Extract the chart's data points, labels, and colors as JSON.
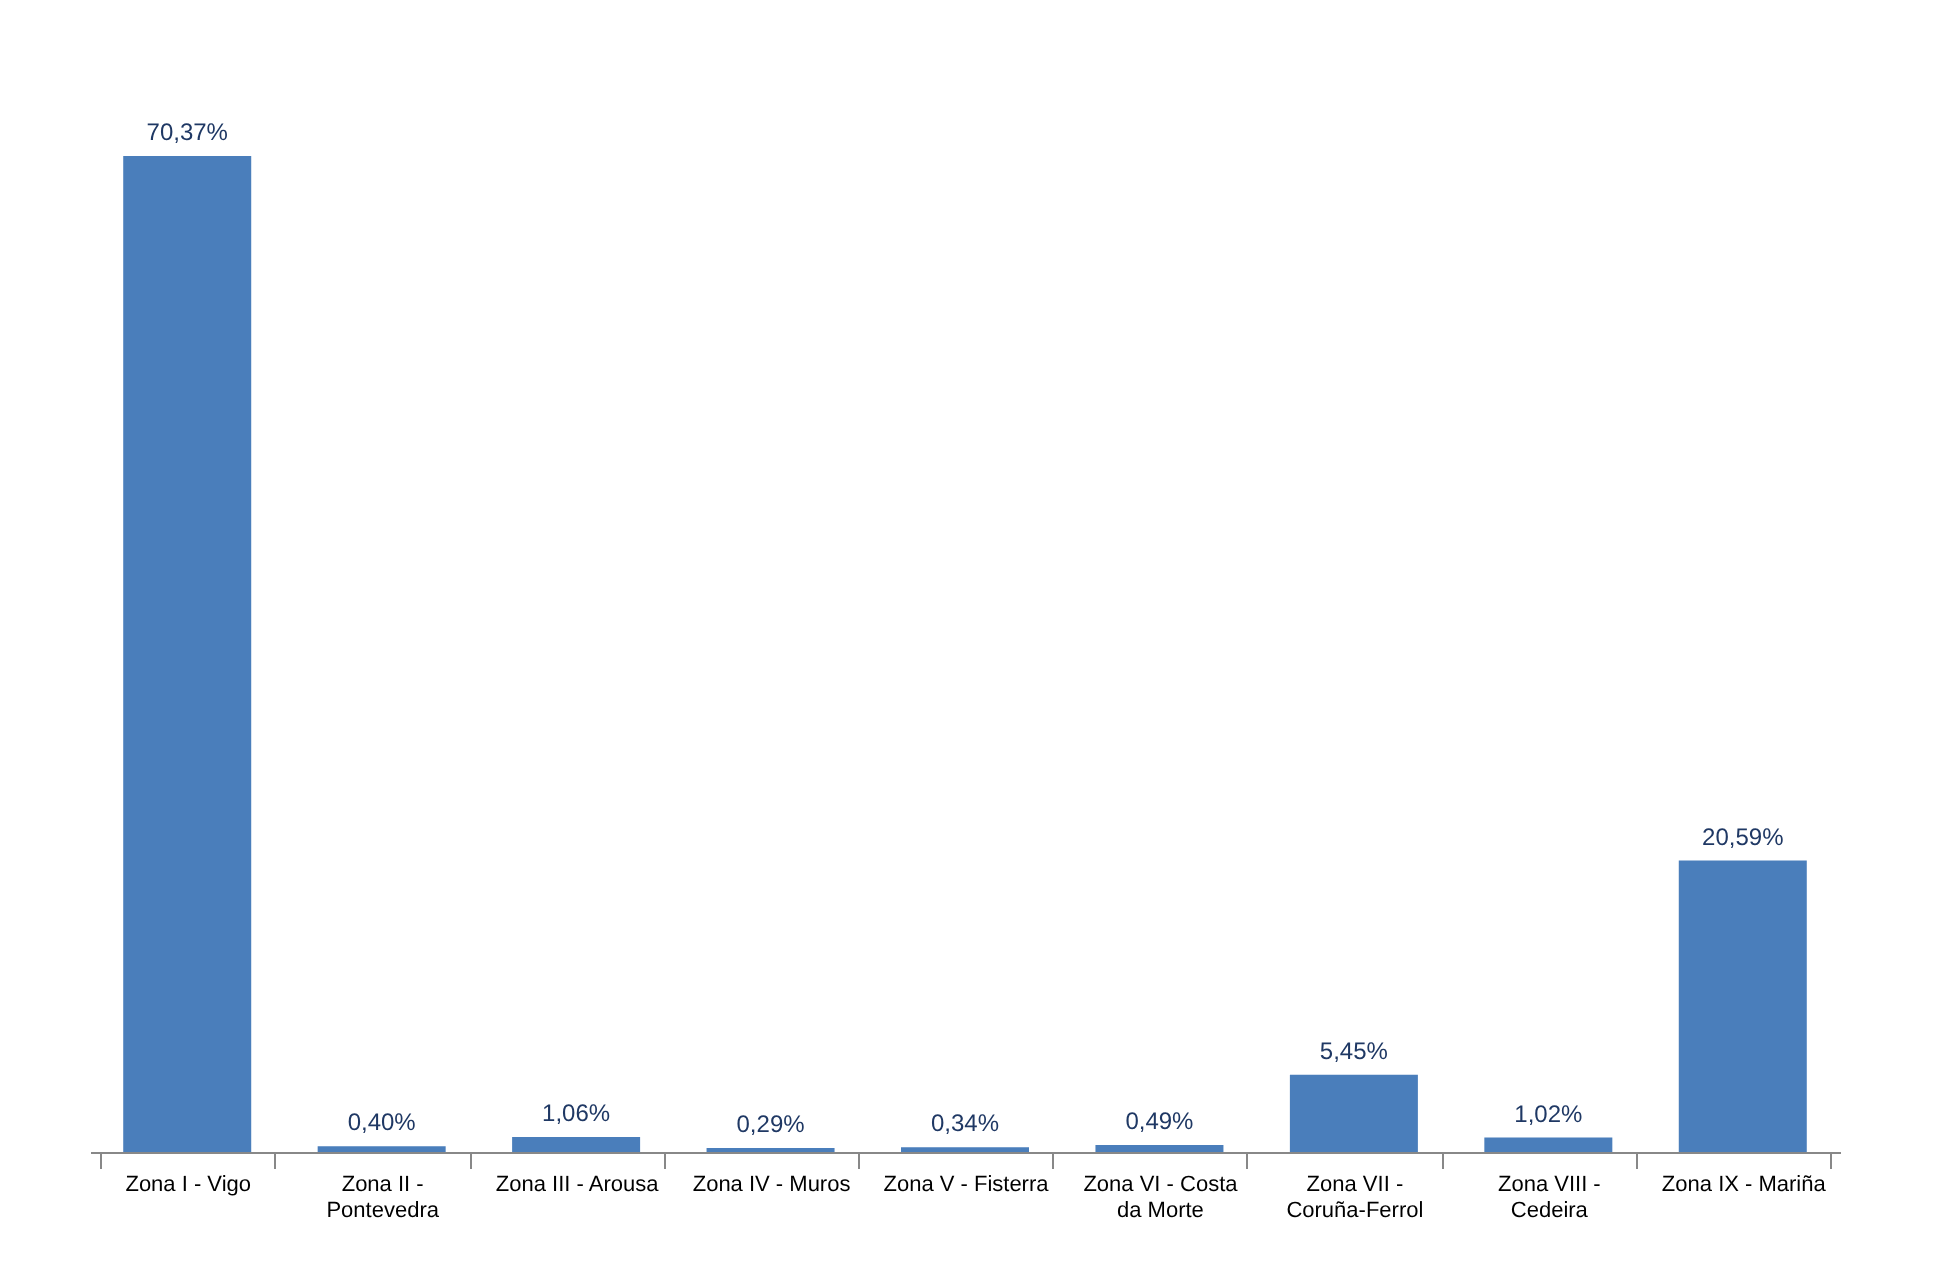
{
  "chart_data": {
    "type": "bar",
    "categories": [
      "Zona I - Vigo",
      "Zona II - Pontevedra",
      "Zona III - Arousa",
      "Zona IV - Muros",
      "Zona V - Fisterra",
      "Zona VI - Costa da Morte",
      "Zona VII - Coruña-Ferrol",
      "Zona VIII - Cedeira",
      "Zona IX - Mariña"
    ],
    "values": [
      70.37,
      0.4,
      1.06,
      0.29,
      0.34,
      0.49,
      5.45,
      1.02,
      20.59
    ],
    "value_labels": [
      "70,37%",
      "0,40%",
      "1,06%",
      "0,29%",
      "0,34%",
      "0,49%",
      "5,45%",
      "1,02%",
      "20,59%"
    ],
    "color": "#4a7ebb",
    "grid": false,
    "tick_labels": "x"
  }
}
